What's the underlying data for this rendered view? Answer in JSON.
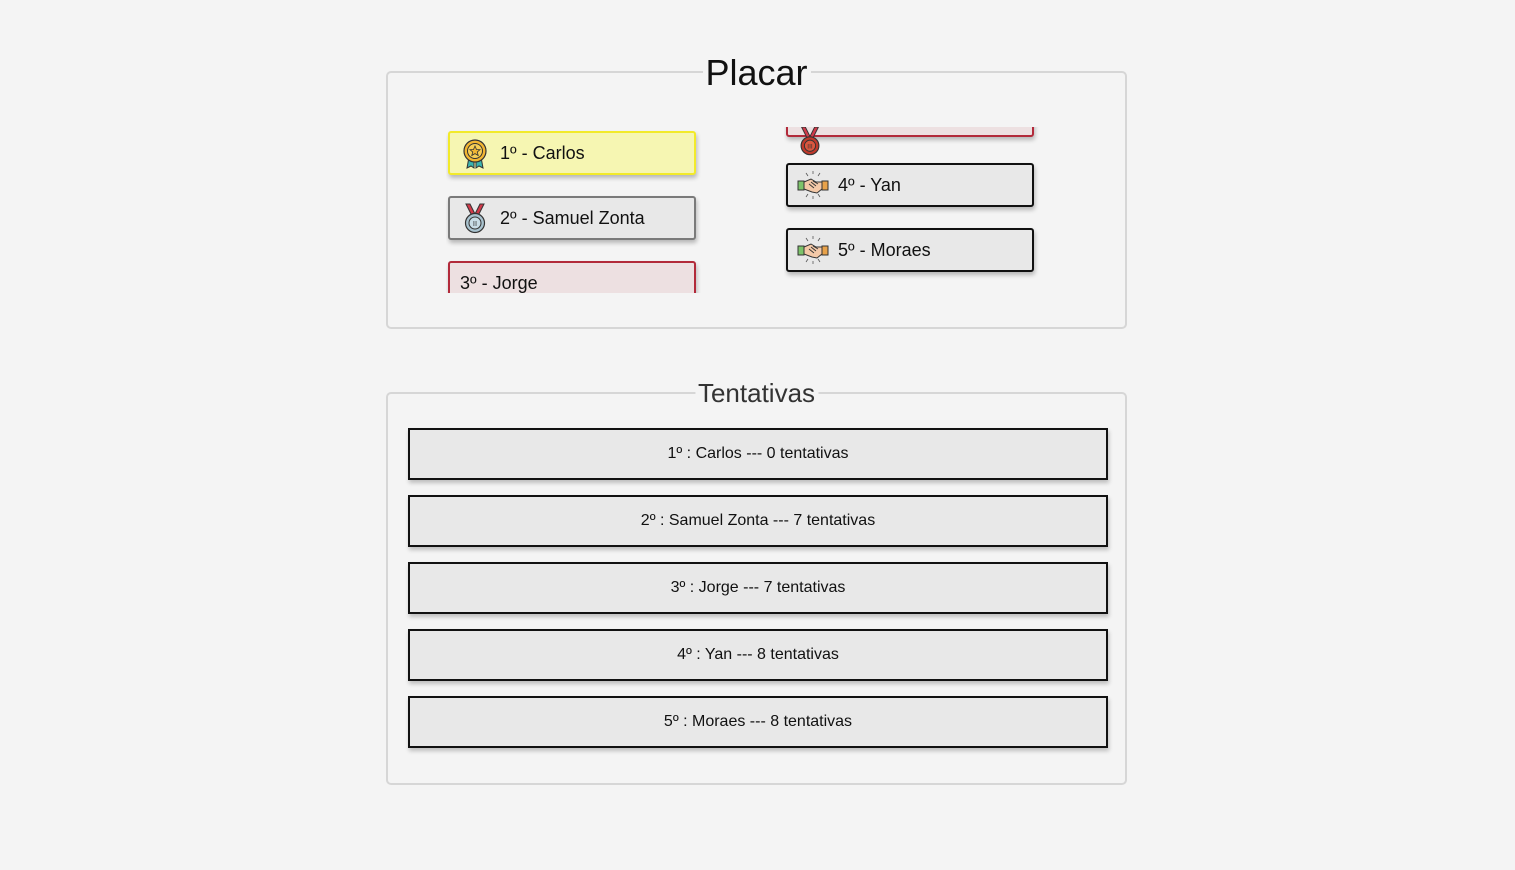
{
  "placar": {
    "title": "Placar",
    "left_column": [
      {
        "label": "1º - Carlos",
        "tier": "gold",
        "icon": "gold-medal-icon"
      },
      {
        "label": "2º - Samuel Zonta",
        "tier": "silver",
        "icon": "silver-medal-icon"
      },
      {
        "label": "3º - Jorge",
        "tier": "bronze",
        "icon": "bronze-medal-icon"
      }
    ],
    "right_column": [
      {
        "label": "",
        "tier": "bronze",
        "icon": "bronze-medal-icon"
      },
      {
        "label": "4º - Yan",
        "tier": "plain",
        "icon": "handshake-icon"
      },
      {
        "label": "5º - Moraes",
        "tier": "plain",
        "icon": "handshake-icon"
      }
    ]
  },
  "tentativas": {
    "title": "Tentativas",
    "rows": [
      {
        "label": "1º : Carlos --- 0 tentativas",
        "tier": "gold"
      },
      {
        "label": "2º : Samuel Zonta --- 7 tentativas",
        "tier": "silver"
      },
      {
        "label": "3º : Jorge --- 7 tentativas",
        "tier": "bronze"
      },
      {
        "label": "4º : Yan --- 8 tentativas",
        "tier": "plain"
      },
      {
        "label": "5º : Moraes --- 8 tentativas",
        "tier": "plain"
      }
    ]
  },
  "colors": {
    "gold_border": "#f2ea2a",
    "gold_bg": "#f6f6b2",
    "silver_border": "#7a7a7a",
    "bronze_border": "#b22a3a",
    "bronze_bg": "#ede0e1",
    "plain_border": "#111111",
    "card_bg": "#e8e8e8",
    "page_bg": "#f4f4f4"
  }
}
